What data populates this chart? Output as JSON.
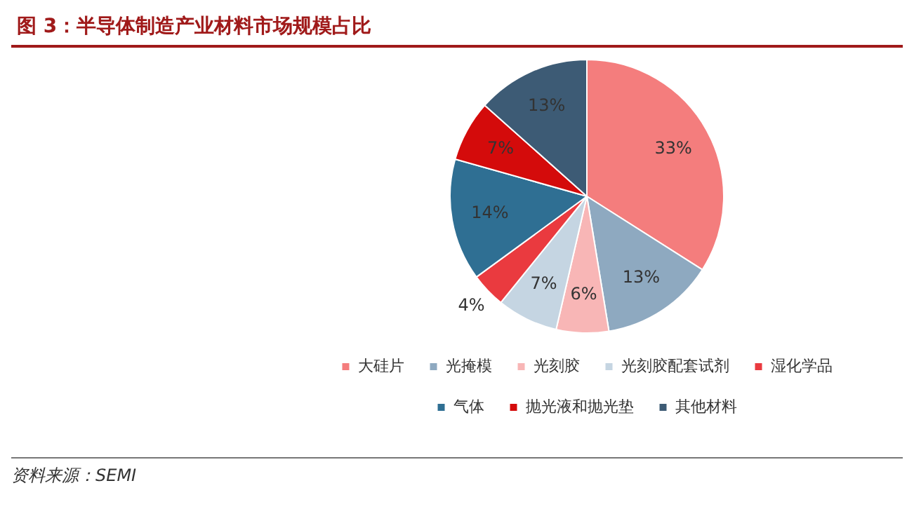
{
  "chart_data": {
    "type": "pie",
    "title": "图 3：半导体制造产业材料市场规模占比",
    "categories": [
      "大硅片",
      "光掩模",
      "光刻胶",
      "光刻胶配套试剂",
      "湿化学品",
      "气体",
      "抛光液和抛光垫",
      "其他材料"
    ],
    "values": [
      33,
      13,
      6,
      7,
      4,
      14,
      7,
      13
    ],
    "value_labels": [
      "33%",
      "13%",
      "6%",
      "7%",
      "4%",
      "14%",
      "7%",
      "13%"
    ],
    "colors": [
      "#f47d7d",
      "#8ea9c0",
      "#f8b6b6",
      "#c5d5e2",
      "#ea3a3f",
      "#2f6f93",
      "#d40b0b",
      "#3d5b75"
    ],
    "legend": "bottom",
    "annotations": [
      "资料来源：SEMI"
    ]
  }
}
